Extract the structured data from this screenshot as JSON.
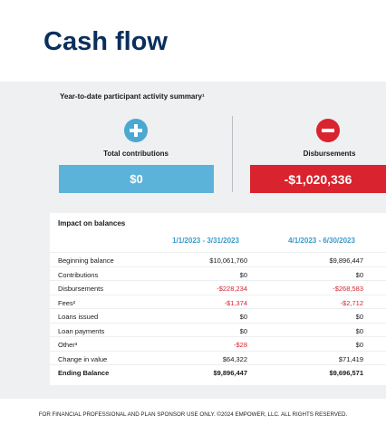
{
  "header": {
    "title": "Cash flow"
  },
  "summary": {
    "title": "Year-to-date participant activity summary¹",
    "contributions": {
      "label": "Total contributions",
      "value": "$0"
    },
    "disbursements": {
      "label": "Disbursements",
      "value": "-$1,020,336"
    }
  },
  "table": {
    "title": "Impact on balances",
    "columns": [
      "1/1/2023 - 3/31/2023",
      "4/1/2023 - 6/30/2023"
    ],
    "rows": [
      [
        "Beginning balance",
        "$10,061,760",
        "$9,896,447"
      ],
      [
        "Contributions",
        "$0",
        "$0"
      ],
      [
        "Disbursements",
        "-$228,234",
        "-$268,583"
      ],
      [
        "Fees²",
        "-$1,374",
        "-$2,712"
      ],
      [
        "Loans issued",
        "$0",
        "$0"
      ],
      [
        "Loan payments",
        "$0",
        "$0"
      ],
      [
        "Other³",
        "-$28",
        "$0"
      ],
      [
        "Change in value",
        "$64,322",
        "$71,419"
      ],
      [
        "Ending Balance",
        "$9,896,447",
        "$9,696,571"
      ]
    ]
  },
  "footer": "FOR FINANCIAL PROFESSIONAL AND PLAN SPONSOR USE ONLY. ©2024 EMPOWER, LLC. ALL RIGHTS RESERVED."
}
